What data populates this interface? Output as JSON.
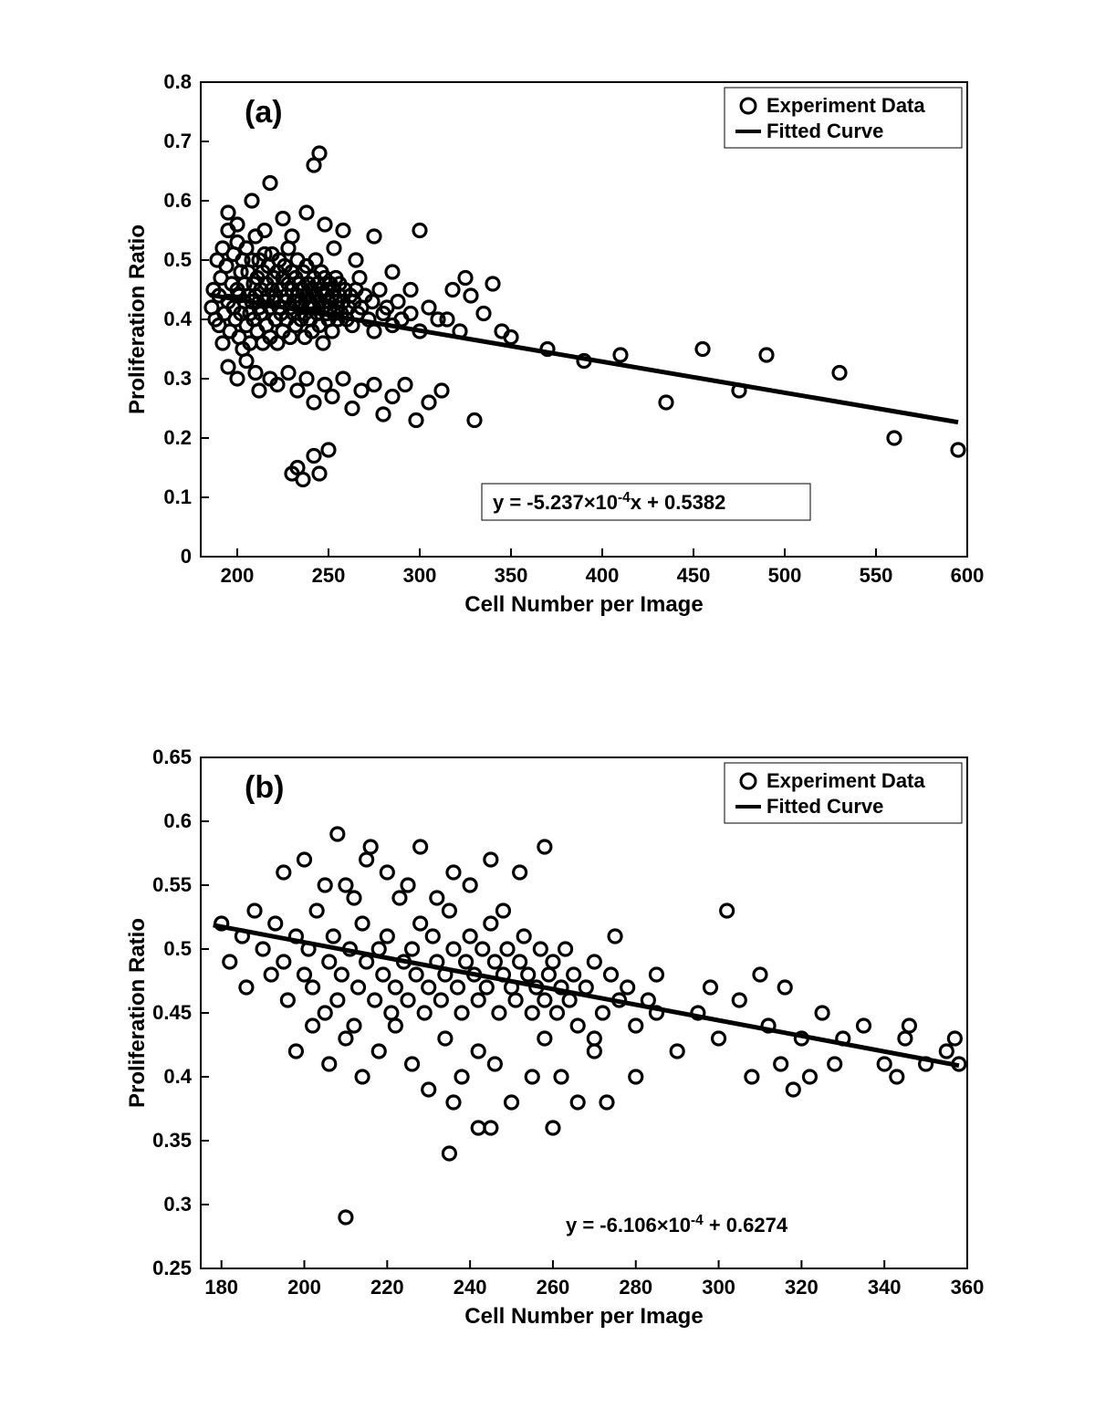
{
  "global": {
    "background_color": "#ffffff",
    "axis_color": "#000000",
    "tick_color": "#000000",
    "text_color": "#000000",
    "marker_stroke": "#000000",
    "marker_fill": "none",
    "line_color": "#000000",
    "font_family": "Arial, Helvetica, sans-serif"
  },
  "chartA": {
    "type": "scatter",
    "panel_label": "(a)",
    "panel_label_fontsize": 34,
    "panel_label_fontweight": "bold",
    "xlabel": "Cell Number per Image",
    "ylabel": "Proliferation Ratio",
    "label_fontsize": 24,
    "label_fontweight": "bold",
    "tick_fontsize": 22,
    "tick_fontweight": "bold",
    "xlim": [
      180,
      600
    ],
    "ylim": [
      0,
      0.8
    ],
    "xticks": [
      200,
      250,
      300,
      350,
      400,
      450,
      500,
      550,
      600
    ],
    "yticks": [
      0,
      0.1,
      0.2,
      0.3,
      0.4,
      0.5,
      0.6,
      0.7,
      0.8
    ],
    "marker_radius": 7,
    "marker_stroke_width": 3.2,
    "fit_line": {
      "slope": -0.0005237,
      "intercept": 0.5382,
      "x0": 185,
      "x1": 595,
      "width": 5
    },
    "legend": {
      "items": [
        {
          "type": "marker",
          "label": "Experiment Data"
        },
        {
          "type": "line",
          "label": "Fitted Curve"
        }
      ],
      "fontsize": 22,
      "fontweight": "bold",
      "border_color": "#000000",
      "border_width": 1
    },
    "equation_box": {
      "text_prefix": "y = -5.237",
      "text_mid1": "×",
      "text_mid2": "10",
      "text_exp": "-4",
      "text_suffix": "x + 0.5382",
      "fontsize": 22,
      "fontweight": "bold",
      "border_color": "#000000",
      "border_width": 1,
      "boxed": true
    },
    "data": [
      [
        186,
        0.42
      ],
      [
        187,
        0.45
      ],
      [
        188,
        0.4
      ],
      [
        189,
        0.5
      ],
      [
        190,
        0.44
      ],
      [
        190,
        0.39
      ],
      [
        191,
        0.47
      ],
      [
        192,
        0.52
      ],
      [
        192,
        0.36
      ],
      [
        193,
        0.41
      ],
      [
        194,
        0.49
      ],
      [
        195,
        0.55
      ],
      [
        195,
        0.43
      ],
      [
        196,
        0.38
      ],
      [
        197,
        0.46
      ],
      [
        198,
        0.42
      ],
      [
        198,
        0.51
      ],
      [
        199,
        0.4
      ],
      [
        200,
        0.45
      ],
      [
        200,
        0.53
      ],
      [
        201,
        0.37
      ],
      [
        201,
        0.44
      ],
      [
        202,
        0.48
      ],
      [
        202,
        0.41
      ],
      [
        203,
        0.5
      ],
      [
        203,
        0.35
      ],
      [
        204,
        0.43
      ],
      [
        204,
        0.46
      ],
      [
        205,
        0.39
      ],
      [
        205,
        0.52
      ],
      [
        206,
        0.44
      ],
      [
        206,
        0.48
      ],
      [
        207,
        0.41
      ],
      [
        207,
        0.36
      ],
      [
        208,
        0.5
      ],
      [
        208,
        0.43
      ],
      [
        209,
        0.46
      ],
      [
        209,
        0.4
      ],
      [
        210,
        0.54
      ],
      [
        210,
        0.44
      ],
      [
        211,
        0.47
      ],
      [
        211,
        0.38
      ],
      [
        212,
        0.42
      ],
      [
        212,
        0.5
      ],
      [
        213,
        0.45
      ],
      [
        213,
        0.41
      ],
      [
        214,
        0.48
      ],
      [
        214,
        0.36
      ],
      [
        215,
        0.51
      ],
      [
        215,
        0.43
      ],
      [
        216,
        0.46
      ],
      [
        216,
        0.39
      ],
      [
        217,
        0.44
      ],
      [
        217,
        0.49
      ],
      [
        218,
        0.42
      ],
      [
        218,
        0.37
      ],
      [
        219,
        0.45
      ],
      [
        219,
        0.51
      ],
      [
        220,
        0.43
      ],
      [
        220,
        0.47
      ],
      [
        221,
        0.4
      ],
      [
        221,
        0.44
      ],
      [
        222,
        0.48
      ],
      [
        222,
        0.36
      ],
      [
        223,
        0.42
      ],
      [
        223,
        0.5
      ],
      [
        224,
        0.45
      ],
      [
        224,
        0.41
      ],
      [
        225,
        0.47
      ],
      [
        225,
        0.38
      ],
      [
        226,
        0.43
      ],
      [
        226,
        0.49
      ],
      [
        227,
        0.44
      ],
      [
        227,
        0.4
      ],
      [
        228,
        0.46
      ],
      [
        228,
        0.52
      ],
      [
        229,
        0.42
      ],
      [
        229,
        0.37
      ],
      [
        230,
        0.45
      ],
      [
        230,
        0.48
      ],
      [
        231,
        0.43
      ],
      [
        231,
        0.41
      ],
      [
        232,
        0.47
      ],
      [
        232,
        0.39
      ],
      [
        233,
        0.44
      ],
      [
        233,
        0.5
      ],
      [
        234,
        0.42
      ],
      [
        234,
        0.46
      ],
      [
        235,
        0.4
      ],
      [
        235,
        0.43
      ],
      [
        236,
        0.48
      ],
      [
        236,
        0.45
      ],
      [
        237,
        0.41
      ],
      [
        237,
        0.37
      ],
      [
        238,
        0.44
      ],
      [
        238,
        0.49
      ],
      [
        239,
        0.42
      ],
      [
        239,
        0.46
      ],
      [
        240,
        0.43
      ],
      [
        240,
        0.4
      ],
      [
        241,
        0.45
      ],
      [
        241,
        0.38
      ],
      [
        242,
        0.47
      ],
      [
        242,
        0.42
      ],
      [
        243,
        0.5
      ],
      [
        243,
        0.44
      ],
      [
        244,
        0.41
      ],
      [
        244,
        0.46
      ],
      [
        245,
        0.43
      ],
      [
        245,
        0.39
      ],
      [
        246,
        0.45
      ],
      [
        246,
        0.48
      ],
      [
        247,
        0.42
      ],
      [
        247,
        0.36
      ],
      [
        248,
        0.44
      ],
      [
        248,
        0.47
      ],
      [
        249,
        0.41
      ],
      [
        249,
        0.45
      ],
      [
        250,
        0.43
      ],
      [
        250,
        0.4
      ],
      [
        251,
        0.46
      ],
      [
        251,
        0.42
      ],
      [
        252,
        0.44
      ],
      [
        252,
        0.38
      ],
      [
        253,
        0.41
      ],
      [
        253,
        0.45
      ],
      [
        254,
        0.43
      ],
      [
        254,
        0.47
      ],
      [
        255,
        0.4
      ],
      [
        255,
        0.42
      ],
      [
        256,
        0.44
      ],
      [
        256,
        0.46
      ],
      [
        257,
        0.41
      ],
      [
        258,
        0.43
      ],
      [
        259,
        0.45
      ],
      [
        260,
        0.4
      ],
      [
        261,
        0.42
      ],
      [
        262,
        0.44
      ],
      [
        263,
        0.39
      ],
      [
        264,
        0.43
      ],
      [
        265,
        0.45
      ],
      [
        266,
        0.41
      ],
      [
        267,
        0.47
      ],
      [
        268,
        0.42
      ],
      [
        270,
        0.44
      ],
      [
        272,
        0.4
      ],
      [
        274,
        0.43
      ],
      [
        275,
        0.38
      ],
      [
        278,
        0.45
      ],
      [
        280,
        0.41
      ],
      [
        282,
        0.42
      ],
      [
        285,
        0.39
      ],
      [
        288,
        0.43
      ],
      [
        290,
        0.4
      ],
      [
        295,
        0.41
      ],
      [
        300,
        0.38
      ],
      [
        305,
        0.42
      ],
      [
        310,
        0.4
      ],
      [
        195,
        0.32
      ],
      [
        200,
        0.3
      ],
      [
        205,
        0.33
      ],
      [
        210,
        0.31
      ],
      [
        212,
        0.28
      ],
      [
        218,
        0.3
      ],
      [
        222,
        0.29
      ],
      [
        228,
        0.31
      ],
      [
        233,
        0.28
      ],
      [
        238,
        0.3
      ],
      [
        242,
        0.26
      ],
      [
        248,
        0.29
      ],
      [
        252,
        0.27
      ],
      [
        258,
        0.3
      ],
      [
        263,
        0.25
      ],
      [
        268,
        0.28
      ],
      [
        275,
        0.29
      ],
      [
        280,
        0.24
      ],
      [
        285,
        0.27
      ],
      [
        292,
        0.29
      ],
      [
        298,
        0.23
      ],
      [
        305,
        0.26
      ],
      [
        312,
        0.28
      ],
      [
        195,
        0.58
      ],
      [
        200,
        0.56
      ],
      [
        208,
        0.6
      ],
      [
        215,
        0.55
      ],
      [
        218,
        0.63
      ],
      [
        225,
        0.57
      ],
      [
        230,
        0.54
      ],
      [
        238,
        0.58
      ],
      [
        242,
        0.66
      ],
      [
        245,
        0.68
      ],
      [
        248,
        0.56
      ],
      [
        253,
        0.52
      ],
      [
        258,
        0.55
      ],
      [
        230,
        0.14
      ],
      [
        233,
        0.15
      ],
      [
        236,
        0.13
      ],
      [
        242,
        0.17
      ],
      [
        245,
        0.14
      ],
      [
        250,
        0.18
      ],
      [
        265,
        0.5
      ],
      [
        275,
        0.54
      ],
      [
        285,
        0.48
      ],
      [
        295,
        0.45
      ],
      [
        300,
        0.55
      ],
      [
        315,
        0.4
      ],
      [
        318,
        0.45
      ],
      [
        322,
        0.38
      ],
      [
        325,
        0.47
      ],
      [
        328,
        0.44
      ],
      [
        330,
        0.23
      ],
      [
        335,
        0.41
      ],
      [
        340,
        0.46
      ],
      [
        345,
        0.38
      ],
      [
        350,
        0.37
      ],
      [
        370,
        0.35
      ],
      [
        390,
        0.33
      ],
      [
        410,
        0.34
      ],
      [
        435,
        0.26
      ],
      [
        455,
        0.35
      ],
      [
        475,
        0.28
      ],
      [
        490,
        0.34
      ],
      [
        530,
        0.31
      ],
      [
        560,
        0.2
      ],
      [
        595,
        0.18
      ]
    ]
  },
  "chartB": {
    "type": "scatter",
    "panel_label": "(b)",
    "panel_label_fontsize": 34,
    "panel_label_fontweight": "bold",
    "xlabel": "Cell Number per Image",
    "ylabel": "Proliferation Ratio",
    "label_fontsize": 24,
    "label_fontweight": "bold",
    "tick_fontsize": 22,
    "tick_fontweight": "bold",
    "xlim": [
      175,
      360
    ],
    "ylim": [
      0.25,
      0.65
    ],
    "xticks": [
      180,
      200,
      220,
      240,
      260,
      280,
      300,
      320,
      340,
      360
    ],
    "yticks": [
      0.25,
      0.3,
      0.35,
      0.4,
      0.45,
      0.5,
      0.55,
      0.6,
      0.65
    ],
    "ytick_labels": [
      "0.25",
      "0.3",
      "0.35",
      "0.4",
      "0.45",
      "0.5",
      "0.55",
      "0.6",
      "0.65"
    ],
    "marker_radius": 7,
    "marker_stroke_width": 3.2,
    "fit_line": {
      "slope": -0.0006106,
      "intercept": 0.6274,
      "x0": 178,
      "x1": 358,
      "width": 5
    },
    "legend": {
      "items": [
        {
          "type": "marker",
          "label": "Experiment Data"
        },
        {
          "type": "line",
          "label": "Fitted Curve"
        }
      ],
      "fontsize": 22,
      "fontweight": "bold",
      "border_color": "#000000",
      "border_width": 1
    },
    "equation_box": {
      "text_prefix": "y = -6.106",
      "text_mid1": "×",
      "text_mid2": "10",
      "text_exp": "-4",
      "text_suffix": " + 0.6274",
      "fontsize": 22,
      "fontweight": "bold",
      "boxed": false
    },
    "data": [
      [
        180,
        0.52
      ],
      [
        182,
        0.49
      ],
      [
        185,
        0.51
      ],
      [
        186,
        0.47
      ],
      [
        188,
        0.53
      ],
      [
        190,
        0.5
      ],
      [
        192,
        0.48
      ],
      [
        193,
        0.52
      ],
      [
        195,
        0.49
      ],
      [
        196,
        0.46
      ],
      [
        198,
        0.51
      ],
      [
        200,
        0.48
      ],
      [
        201,
        0.5
      ],
      [
        202,
        0.47
      ],
      [
        203,
        0.53
      ],
      [
        205,
        0.45
      ],
      [
        206,
        0.49
      ],
      [
        207,
        0.51
      ],
      [
        208,
        0.46
      ],
      [
        209,
        0.48
      ],
      [
        210,
        0.55
      ],
      [
        211,
        0.5
      ],
      [
        212,
        0.44
      ],
      [
        213,
        0.47
      ],
      [
        214,
        0.52
      ],
      [
        215,
        0.49
      ],
      [
        216,
        0.58
      ],
      [
        217,
        0.46
      ],
      [
        218,
        0.5
      ],
      [
        219,
        0.48
      ],
      [
        220,
        0.51
      ],
      [
        221,
        0.45
      ],
      [
        222,
        0.47
      ],
      [
        223,
        0.54
      ],
      [
        224,
        0.49
      ],
      [
        225,
        0.46
      ],
      [
        226,
        0.5
      ],
      [
        227,
        0.48
      ],
      [
        228,
        0.52
      ],
      [
        229,
        0.45
      ],
      [
        230,
        0.47
      ],
      [
        231,
        0.51
      ],
      [
        232,
        0.49
      ],
      [
        233,
        0.46
      ],
      [
        234,
        0.48
      ],
      [
        235,
        0.53
      ],
      [
        236,
        0.5
      ],
      [
        237,
        0.47
      ],
      [
        238,
        0.45
      ],
      [
        239,
        0.49
      ],
      [
        240,
        0.51
      ],
      [
        241,
        0.48
      ],
      [
        242,
        0.46
      ],
      [
        243,
        0.5
      ],
      [
        244,
        0.47
      ],
      [
        245,
        0.52
      ],
      [
        246,
        0.49
      ],
      [
        247,
        0.45
      ],
      [
        248,
        0.48
      ],
      [
        249,
        0.5
      ],
      [
        250,
        0.47
      ],
      [
        251,
        0.46
      ],
      [
        252,
        0.49
      ],
      [
        253,
        0.51
      ],
      [
        254,
        0.48
      ],
      [
        255,
        0.45
      ],
      [
        256,
        0.47
      ],
      [
        257,
        0.5
      ],
      [
        258,
        0.46
      ],
      [
        259,
        0.48
      ],
      [
        260,
        0.49
      ],
      [
        261,
        0.45
      ],
      [
        262,
        0.47
      ],
      [
        263,
        0.5
      ],
      [
        264,
        0.46
      ],
      [
        265,
        0.48
      ],
      [
        266,
        0.44
      ],
      [
        268,
        0.47
      ],
      [
        270,
        0.49
      ],
      [
        272,
        0.45
      ],
      [
        274,
        0.48
      ],
      [
        276,
        0.46
      ],
      [
        278,
        0.47
      ],
      [
        280,
        0.44
      ],
      [
        283,
        0.46
      ],
      [
        285,
        0.45
      ],
      [
        195,
        0.56
      ],
      [
        200,
        0.57
      ],
      [
        205,
        0.55
      ],
      [
        208,
        0.59
      ],
      [
        212,
        0.54
      ],
      [
        215,
        0.57
      ],
      [
        220,
        0.56
      ],
      [
        225,
        0.55
      ],
      [
        228,
        0.58
      ],
      [
        232,
        0.54
      ],
      [
        236,
        0.56
      ],
      [
        240,
        0.55
      ],
      [
        245,
        0.57
      ],
      [
        248,
        0.53
      ],
      [
        252,
        0.56
      ],
      [
        258,
        0.58
      ],
      [
        198,
        0.42
      ],
      [
        202,
        0.44
      ],
      [
        206,
        0.41
      ],
      [
        210,
        0.43
      ],
      [
        214,
        0.4
      ],
      [
        218,
        0.42
      ],
      [
        222,
        0.44
      ],
      [
        226,
        0.41
      ],
      [
        230,
        0.39
      ],
      [
        234,
        0.43
      ],
      [
        235,
        0.34
      ],
      [
        236,
        0.38
      ],
      [
        238,
        0.4
      ],
      [
        242,
        0.42
      ],
      [
        242,
        0.36
      ],
      [
        245,
        0.36
      ],
      [
        246,
        0.41
      ],
      [
        250,
        0.38
      ],
      [
        255,
        0.4
      ],
      [
        258,
        0.43
      ],
      [
        260,
        0.36
      ],
      [
        262,
        0.4
      ],
      [
        266,
        0.38
      ],
      [
        270,
        0.42
      ],
      [
        273,
        0.38
      ],
      [
        210,
        0.29
      ],
      [
        270,
        0.43
      ],
      [
        275,
        0.51
      ],
      [
        280,
        0.4
      ],
      [
        285,
        0.48
      ],
      [
        290,
        0.42
      ],
      [
        295,
        0.45
      ],
      [
        298,
        0.47
      ],
      [
        300,
        0.43
      ],
      [
        302,
        0.53
      ],
      [
        305,
        0.46
      ],
      [
        308,
        0.4
      ],
      [
        310,
        0.48
      ],
      [
        312,
        0.44
      ],
      [
        315,
        0.41
      ],
      [
        316,
        0.47
      ],
      [
        318,
        0.39
      ],
      [
        320,
        0.43
      ],
      [
        322,
        0.4
      ],
      [
        325,
        0.45
      ],
      [
        328,
        0.41
      ],
      [
        330,
        0.43
      ],
      [
        335,
        0.44
      ],
      [
        340,
        0.41
      ],
      [
        343,
        0.4
      ],
      [
        345,
        0.43
      ],
      [
        346,
        0.44
      ],
      [
        350,
        0.41
      ],
      [
        355,
        0.42
      ],
      [
        357,
        0.43
      ],
      [
        358,
        0.41
      ]
    ]
  }
}
